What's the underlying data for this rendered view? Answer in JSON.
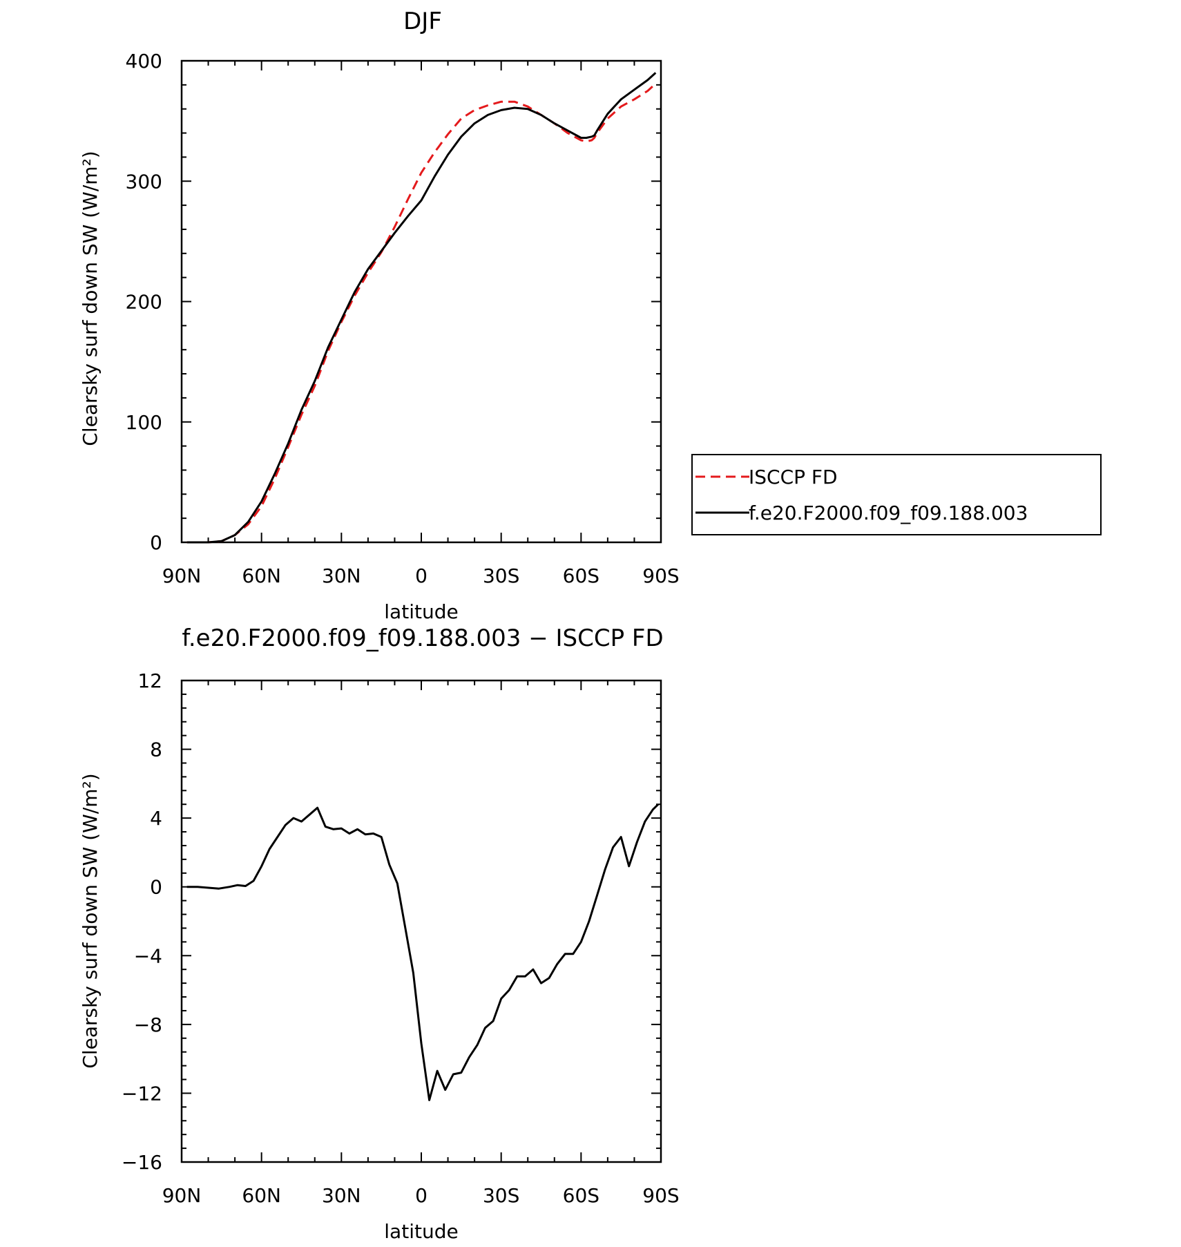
{
  "chart_data": [
    {
      "type": "line",
      "title": "DJF",
      "xlabel": "latitude",
      "ylabel": "Clearsky surf down SW (W/m²)",
      "x_tick_labels": [
        "90N",
        "60N",
        "30N",
        "0",
        "30S",
        "60S",
        "90S"
      ],
      "y_tick_labels": [
        "0",
        "100",
        "200",
        "300",
        "400"
      ],
      "xlim": [
        90,
        -90
      ],
      "ylim": [
        0,
        400
      ],
      "grid": false,
      "legend": {
        "placement": "right",
        "entries": [
          "ISCCP FD",
          "f.e20.F2000.f09_f09.188.003"
        ]
      },
      "x": [
        88,
        85,
        80,
        75,
        70,
        65,
        60,
        55,
        50,
        45,
        40,
        35,
        30,
        25,
        20,
        15,
        10,
        5,
        0,
        -5,
        -10,
        -15,
        -20,
        -25,
        -30,
        -35,
        -40,
        -45,
        -50,
        -55,
        -60,
        -62,
        -64,
        -65,
        -66,
        -70,
        -75,
        -80,
        -85,
        -88
      ],
      "series": [
        {
          "name": "ISCCP FD",
          "color": "#e41a1c",
          "dash": "dashed",
          "values": [
            0,
            0,
            0,
            1,
            6,
            15,
            30,
            53,
            79,
            106,
            130,
            159,
            183,
            205,
            224,
            241,
            262,
            285,
            307,
            324,
            339,
            352,
            359,
            363,
            366,
            366,
            362,
            355,
            348,
            340,
            334,
            333,
            334,
            336,
            340,
            352,
            362,
            368,
            375,
            381
          ]
        },
        {
          "name": "f.e20.F2000.f09_f09.188.003",
          "color": "#000000",
          "dash": "solid",
          "values": [
            0,
            0,
            0,
            1,
            6,
            17,
            34,
            57,
            82,
            110,
            134,
            162,
            185,
            208,
            227,
            242,
            257,
            271,
            284,
            304,
            322,
            337,
            348,
            355,
            359,
            361,
            360,
            355,
            348,
            342,
            336,
            336,
            337,
            338,
            342,
            356,
            368,
            376,
            384,
            390
          ]
        }
      ]
    },
    {
      "type": "line",
      "title": "f.e20.F2000.f09_f09.188.003 − ISCCP FD",
      "xlabel": "latitude",
      "ylabel": "Clearsky surf down SW (W/m²)",
      "x_tick_labels": [
        "90N",
        "60N",
        "30N",
        "0",
        "30S",
        "60S",
        "90S"
      ],
      "y_tick_labels": [
        "12",
        "8",
        "4",
        "0",
        "−4",
        "−8",
        "−12",
        "−16"
      ],
      "xlim": [
        90,
        -90
      ],
      "ylim": [
        -16,
        12
      ],
      "grid": false,
      "x": [
        88,
        84,
        80,
        76,
        72,
        69,
        66,
        63,
        60,
        57,
        54,
        51,
        48,
        45,
        42,
        39,
        36,
        33,
        30,
        27,
        24,
        21,
        18,
        15,
        12,
        9,
        6,
        3,
        0,
        -3,
        -6,
        -9,
        -12,
        -15,
        -18,
        -21,
        -24,
        -27,
        -30,
        -33,
        -36,
        -39,
        -42,
        -45,
        -48,
        -51,
        -54,
        -57,
        -60,
        -63,
        -66,
        -69,
        -72,
        -75,
        -78,
        -81,
        -84,
        -87,
        -89
      ],
      "series": [
        {
          "name": "",
          "color": "#000000",
          "dash": "solid",
          "values": [
            0,
            0,
            -0.05,
            -0.1,
            0,
            0.1,
            0.05,
            0.35,
            1.2,
            2.2,
            2.9,
            3.6,
            4.0,
            3.8,
            4.2,
            4.6,
            3.5,
            3.35,
            3.4,
            3.1,
            3.35,
            3.05,
            3.1,
            2.9,
            1.3,
            0.2,
            -2.4,
            -5.0,
            -9.1,
            -12.4,
            -10.7,
            -11.8,
            -10.9,
            -10.8,
            -9.9,
            -9.2,
            -8.2,
            -7.8,
            -6.5,
            -6.0,
            -5.2,
            -5.2,
            -4.8,
            -5.6,
            -5.3,
            -4.5,
            -3.9,
            -3.9,
            -3.2,
            -2.0,
            -0.5,
            1.0,
            2.3,
            2.9,
            1.2,
            2.6,
            3.8,
            4.5,
            4.8
          ]
        }
      ]
    }
  ]
}
